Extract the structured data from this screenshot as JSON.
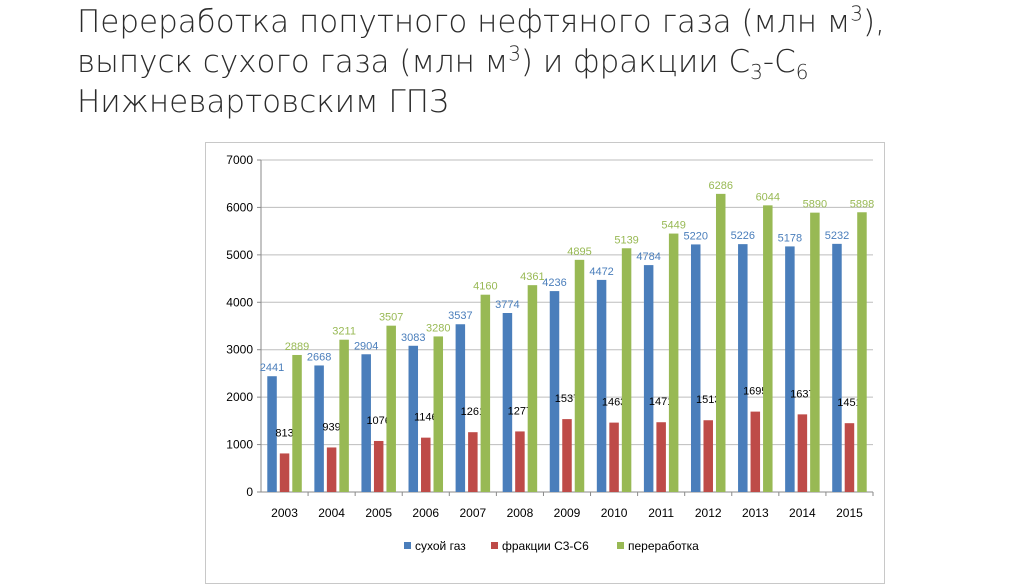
{
  "slide": {
    "title_p1": "Переработка попутного нефтяного газа (млн м",
    "sup1": "3",
    "title_p2": "), выпуск сухого газа (млн м",
    "sup2": "3",
    "title_p3": ") и фракции С",
    "sub1": "3",
    "title_p4": "-С",
    "sub2": "6",
    "title_p5": " Нижневартовским ГПЗ"
  },
  "chart_data": {
    "type": "bar",
    "title": "",
    "xlabel": "",
    "ylabel": "",
    "ylim": [
      0,
      7000
    ],
    "yticks": [
      0,
      1000,
      2000,
      3000,
      4000,
      5000,
      6000,
      7000
    ],
    "grid": true,
    "legend_position": "bottom",
    "categories": [
      "2003",
      "2004",
      "2005",
      "2006",
      "2007",
      "2008",
      "2009",
      "2010",
      "2011",
      "2012",
      "2013",
      "2014",
      "2015"
    ],
    "series": [
      {
        "name": "сухой газ",
        "color": "#4a7ebb",
        "label_color": "#4a7ebb",
        "values": [
          2441,
          2668,
          2904,
          3083,
          3537,
          3774,
          4236,
          4472,
          4784,
          5220,
          5226,
          5178,
          5232
        ]
      },
      {
        "name": "фракции С3-С6",
        "color": "#be4b48",
        "label_color": "#000000",
        "values": [
          813,
          939,
          1076,
          1146,
          1261,
          1277,
          1537,
          1463,
          1471,
          1513,
          1695,
          1637,
          1451
        ]
      },
      {
        "name": "переработка",
        "color": "#98b954",
        "label_color": "#98b954",
        "values": [
          2889,
          3211,
          3507,
          3280,
          4160,
          4361,
          4895,
          5139,
          5449,
          6286,
          6044,
          5890,
          5898
        ]
      }
    ]
  }
}
